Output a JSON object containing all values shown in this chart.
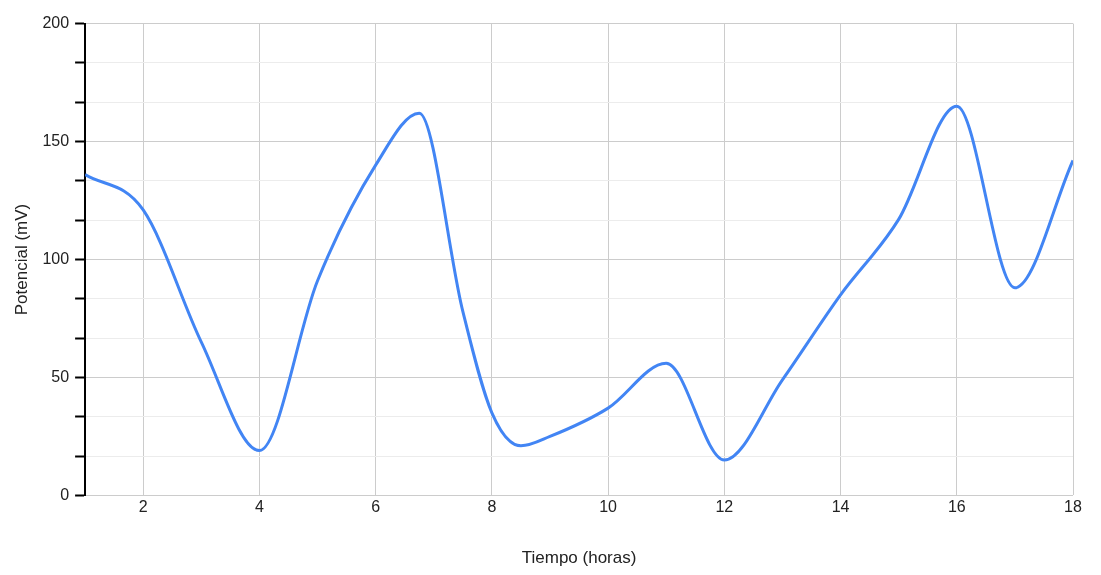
{
  "chart_data": {
    "type": "line",
    "xlabel": "Tiempo (horas)",
    "ylabel": "Potencial (mV)",
    "x": [
      1,
      2,
      3,
      4,
      5,
      6,
      6.75,
      7.5,
      8,
      8.5,
      9,
      10,
      11,
      12,
      13,
      14,
      15,
      16,
      17,
      18
    ],
    "series": [
      {
        "color": "#4285f4",
        "values": [
          136,
          121,
          65,
          19,
          91,
          140,
          162,
          78,
          35,
          21,
          25,
          37,
          56,
          15,
          49,
          85,
          117,
          165,
          88,
          142
        ]
      }
    ],
    "xlim": [
      1,
      18
    ],
    "xticks": [
      2,
      4,
      6,
      8,
      10,
      12,
      14,
      16,
      18
    ],
    "ylim": [
      0,
      200
    ],
    "yticks": [
      0,
      {
        "value": 16.7,
        "label": null
      },
      {
        "value": 33.3,
        "label": null
      },
      50,
      {
        "value": 66.7,
        "label": null
      },
      {
        "value": 83.3,
        "label": null
      },
      100,
      {
        "value": 116.7,
        "label": null
      },
      {
        "value": 133.3,
        "label": null
      },
      150,
      {
        "value": 166.7,
        "label": null
      },
      {
        "value": 183.3,
        "label": null
      },
      200
    ],
    "grid": true,
    "legend": false,
    "marker": "none",
    "line_style": "solid"
  }
}
